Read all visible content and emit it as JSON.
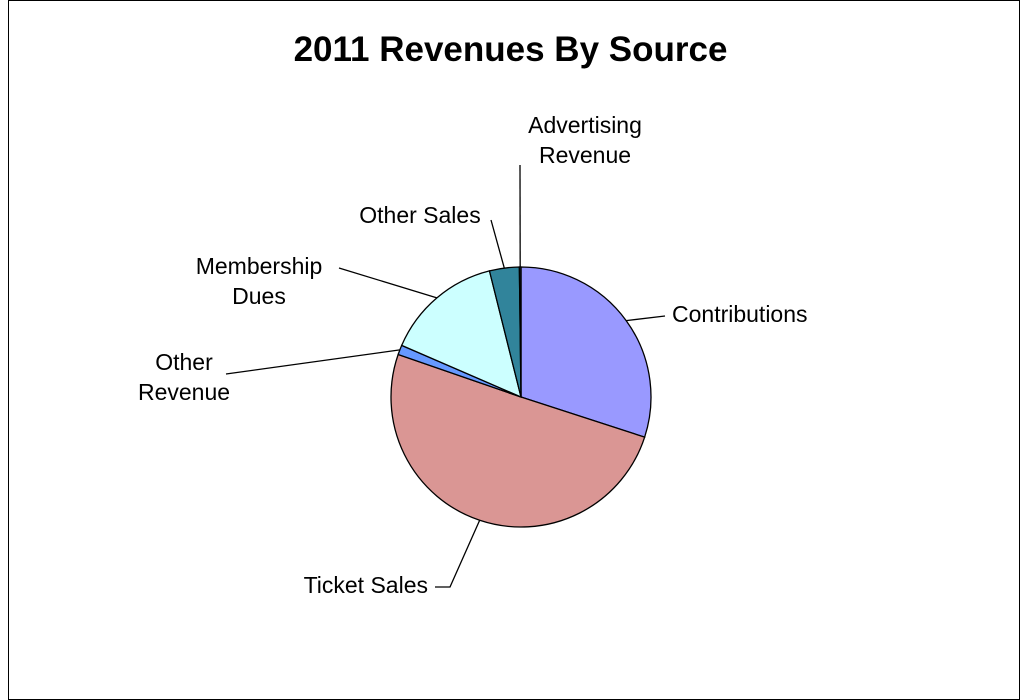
{
  "chart_data": {
    "type": "pie",
    "title": "2011 Revenues By Source",
    "categories": [
      "Contributions",
      "Ticket Sales",
      "Other Revenue",
      "Membership Dues",
      "Other Sales",
      "Advertising Revenue"
    ],
    "values": [
      30.0,
      50.3,
      1.2,
      14.6,
      3.7,
      0.2
    ],
    "labels": [
      {
        "lines": [
          "Contributions"
        ]
      },
      {
        "lines": [
          "Ticket Sales"
        ]
      },
      {
        "lines": [
          "Other",
          "Revenue"
        ]
      },
      {
        "lines": [
          "Membership",
          "Dues"
        ]
      },
      {
        "lines": [
          "Other Sales"
        ]
      },
      {
        "lines": [
          "Advertising",
          "Revenue"
        ]
      }
    ],
    "colors": [
      "#9999ff",
      "#da9694",
      "#6699ff",
      "#ccffff",
      "#31849b",
      "#1f2a44"
    ],
    "legend": "none"
  }
}
